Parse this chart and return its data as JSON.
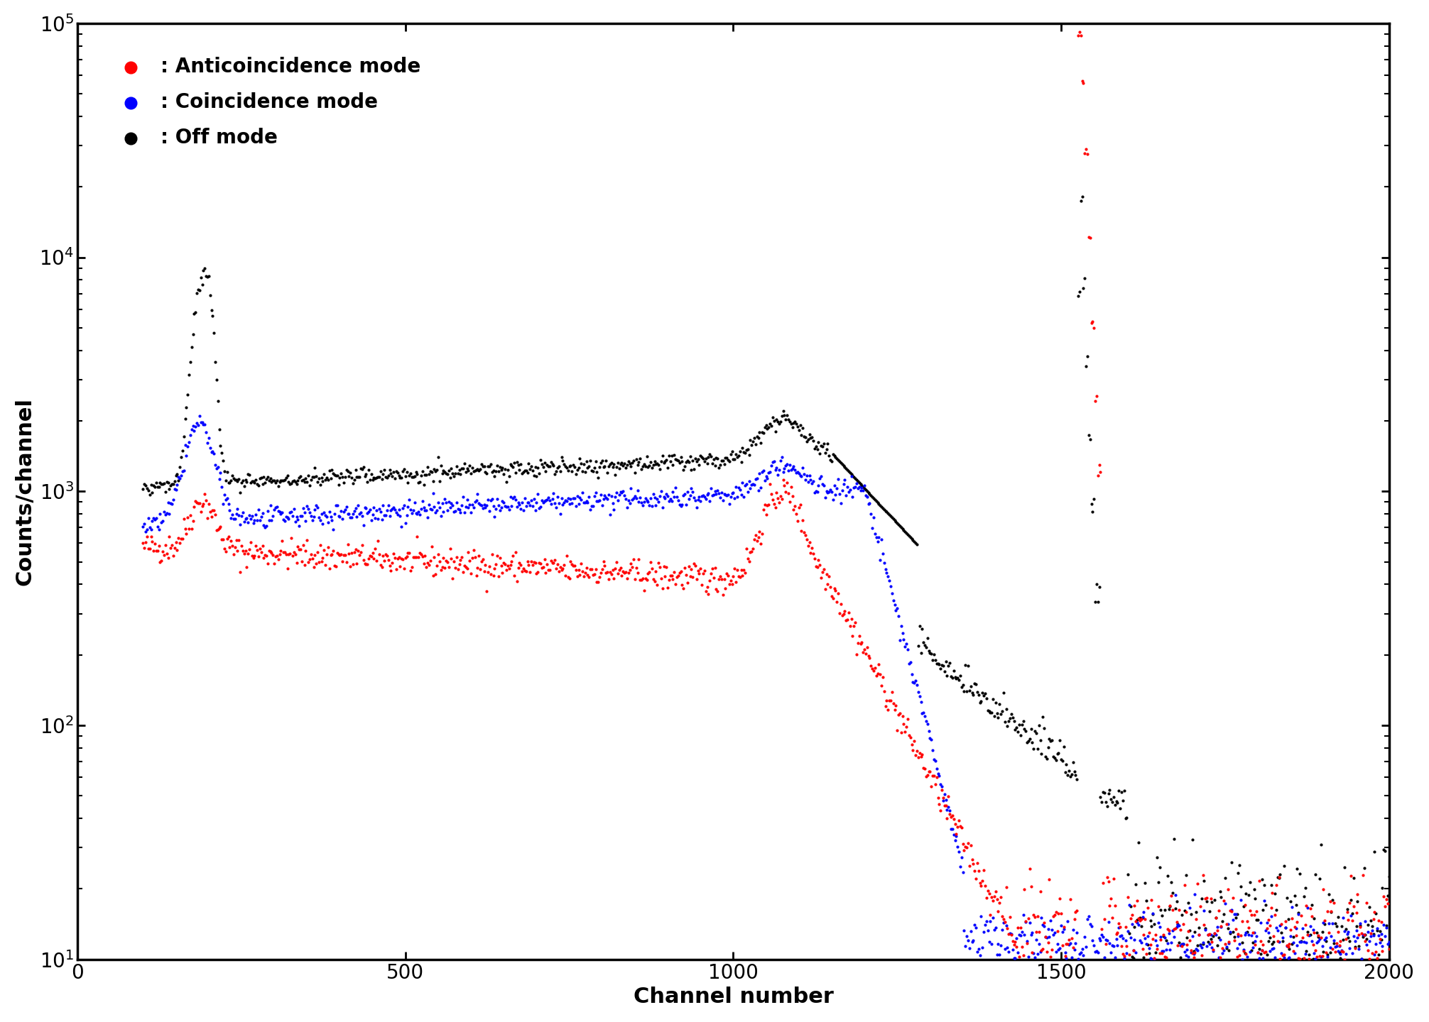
{
  "title": "",
  "xlabel": "Channel number",
  "ylabel": "Counts/channel",
  "xlim": [
    0,
    2000
  ],
  "ylim": [
    10,
    100000
  ],
  "legend_entries": [
    ": Anticoincidence mode",
    ": Coincidence mode",
    ": Off mode"
  ],
  "colors": {
    "anticoincidence": "#ff0000",
    "coincidence": "#0000ff",
    "off": "#000000"
  },
  "marker_size": 3,
  "xlabel_fontsize": 22,
  "ylabel_fontsize": 22,
  "tick_fontsize": 20,
  "legend_fontsize": 20,
  "background_color": "#ffffff"
}
